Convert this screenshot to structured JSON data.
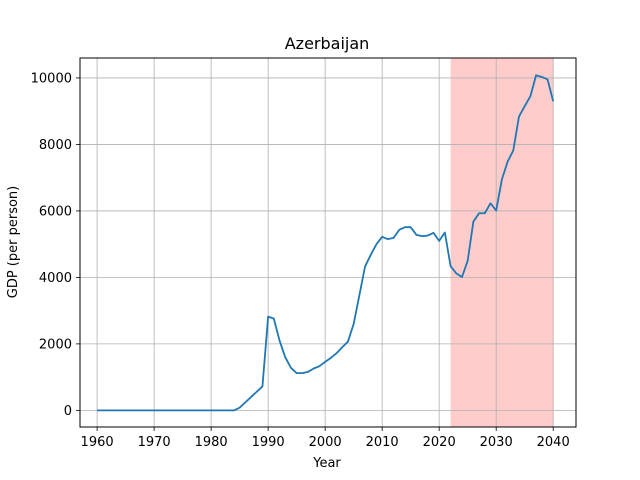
{
  "chart_data": {
    "type": "line",
    "title": "Azerbaijan",
    "xlabel": "Year",
    "ylabel": "GDP (per person)",
    "xlim": [
      1957,
      2044
    ],
    "ylim": [
      -500,
      10600
    ],
    "xticks": [
      1960,
      1970,
      1980,
      1990,
      2000,
      2010,
      2020,
      2030,
      2040
    ],
    "yticks": [
      0,
      2000,
      4000,
      6000,
      8000,
      10000
    ],
    "grid": true,
    "line_color": "#1f77b4",
    "highlight_region": {
      "x_start": 2022,
      "x_end": 2040,
      "color": "#ffcccc"
    },
    "series": [
      {
        "x": [
          1960,
          1961,
          1962,
          1963,
          1964,
          1965,
          1966,
          1967,
          1968,
          1969,
          1970,
          1971,
          1972,
          1973,
          1974,
          1975,
          1976,
          1977,
          1978,
          1979,
          1980,
          1981,
          1982,
          1983,
          1984,
          1985,
          1986,
          1987,
          1988,
          1989,
          1990,
          1991,
          1992,
          1993,
          1994,
          1995,
          1996,
          1997,
          1998,
          1999,
          2000,
          2001,
          2002,
          2003,
          2004,
          2005,
          2006,
          2007,
          2008,
          2009,
          2010,
          2011,
          2012,
          2013,
          2014,
          2015,
          2016,
          2017,
          2018,
          2019,
          2020,
          2021,
          2022,
          2023,
          2024,
          2025,
          2026,
          2027,
          2028,
          2029,
          2030,
          2031,
          2032,
          2033,
          2034,
          2035,
          2036,
          2037,
          2038,
          2039,
          2040
        ],
        "values": [
          0,
          0,
          0,
          0,
          0,
          0,
          0,
          0,
          0,
          0,
          0,
          0,
          0,
          0,
          0,
          0,
          0,
          0,
          0,
          0,
          0,
          0,
          0,
          0,
          0,
          80,
          240,
          400,
          560,
          720,
          2820,
          2760,
          2100,
          1600,
          1280,
          1120,
          1120,
          1160,
          1260,
          1330,
          1460,
          1580,
          1720,
          1900,
          2070,
          2600,
          3460,
          4330,
          4680,
          5000,
          5220,
          5150,
          5190,
          5430,
          5510,
          5510,
          5280,
          5240,
          5260,
          5340,
          5100,
          5350,
          4340,
          4120,
          4010,
          4500,
          5680,
          5930,
          5930,
          6230,
          6010,
          6950,
          7480,
          7820,
          8840,
          9150,
          9450,
          10080,
          10030,
          9960,
          9300
        ]
      }
    ]
  }
}
